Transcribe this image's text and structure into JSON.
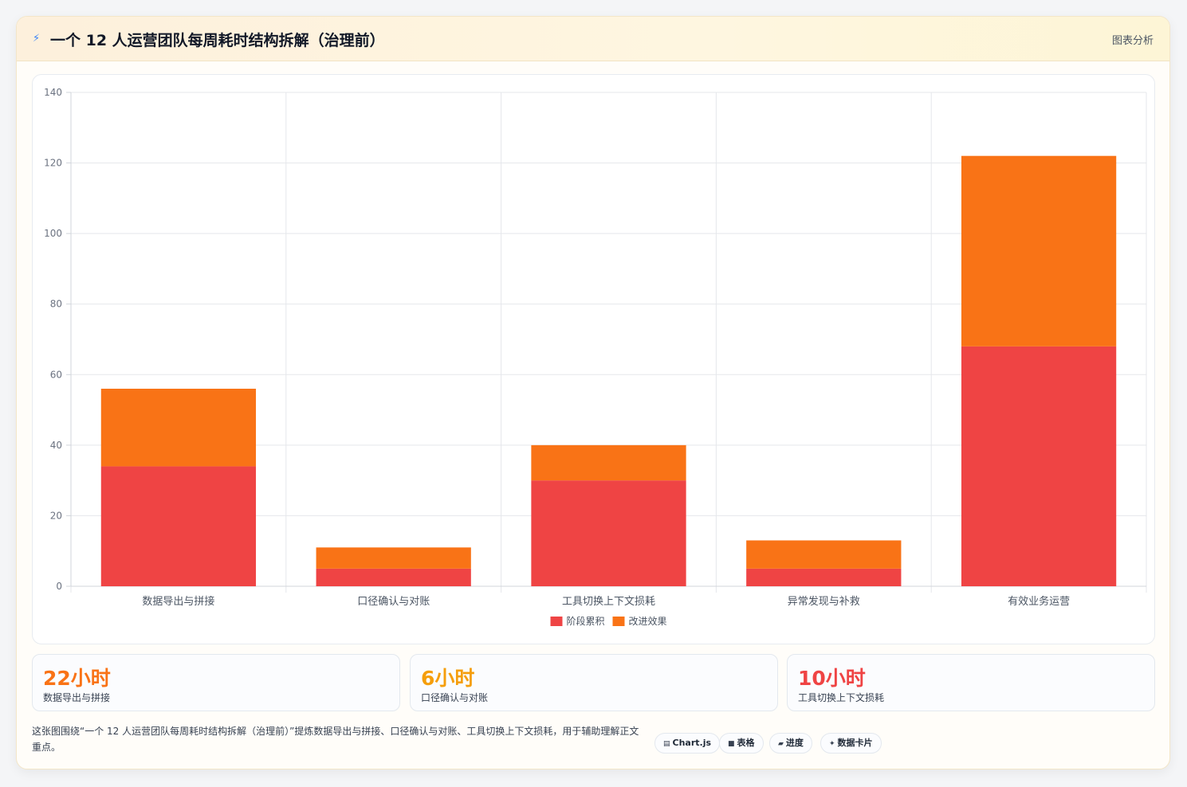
{
  "header": {
    "icon": "bolt-icon",
    "title": "一个 12 人运营团队每周耗时结构拆解（治理前）",
    "tag": "图表分析"
  },
  "chart_data": {
    "type": "bar",
    "stacked": true,
    "categories": [
      "数据导出与拼接",
      "口径确认与对账",
      "工具切换上下文损耗",
      "异常发现与补救",
      "有效业务运营"
    ],
    "series": [
      {
        "name": "阶段累积",
        "color": "#ef4444",
        "values": [
          34,
          5,
          30,
          5,
          68
        ]
      },
      {
        "name": "改进效果",
        "color": "#f97316",
        "values": [
          22,
          6,
          10,
          8,
          54
        ]
      }
    ],
    "ylim": [
      0,
      140
    ],
    "yticks": [
      0,
      20,
      40,
      60,
      80,
      100,
      120,
      140
    ],
    "grid": true,
    "legend": "bottom"
  },
  "stats": [
    {
      "value": "22小时",
      "label": "数据导出与拼接",
      "color": "#f97316"
    },
    {
      "value": "6小时",
      "label": "口径确认与对账",
      "color": "#f59e0b"
    },
    {
      "value": "10小时",
      "label": "工具切换上下文损耗",
      "color": "#ef4444"
    }
  ],
  "note": "这张图围绕“一个 12 人运营团队每周耗时结构拆解（治理前）”提炼数据导出与拼接、口径确认与对账、工具切换上下文损耗，用于辅助理解正文重点。",
  "pills": [
    {
      "icon": "chart-icon",
      "label": "Chart.js"
    },
    {
      "icon": "table-icon",
      "label": "表格"
    },
    {
      "icon": "progress-icon",
      "label": "进度"
    },
    {
      "icon": "card-icon",
      "label": "数据卡片"
    }
  ]
}
